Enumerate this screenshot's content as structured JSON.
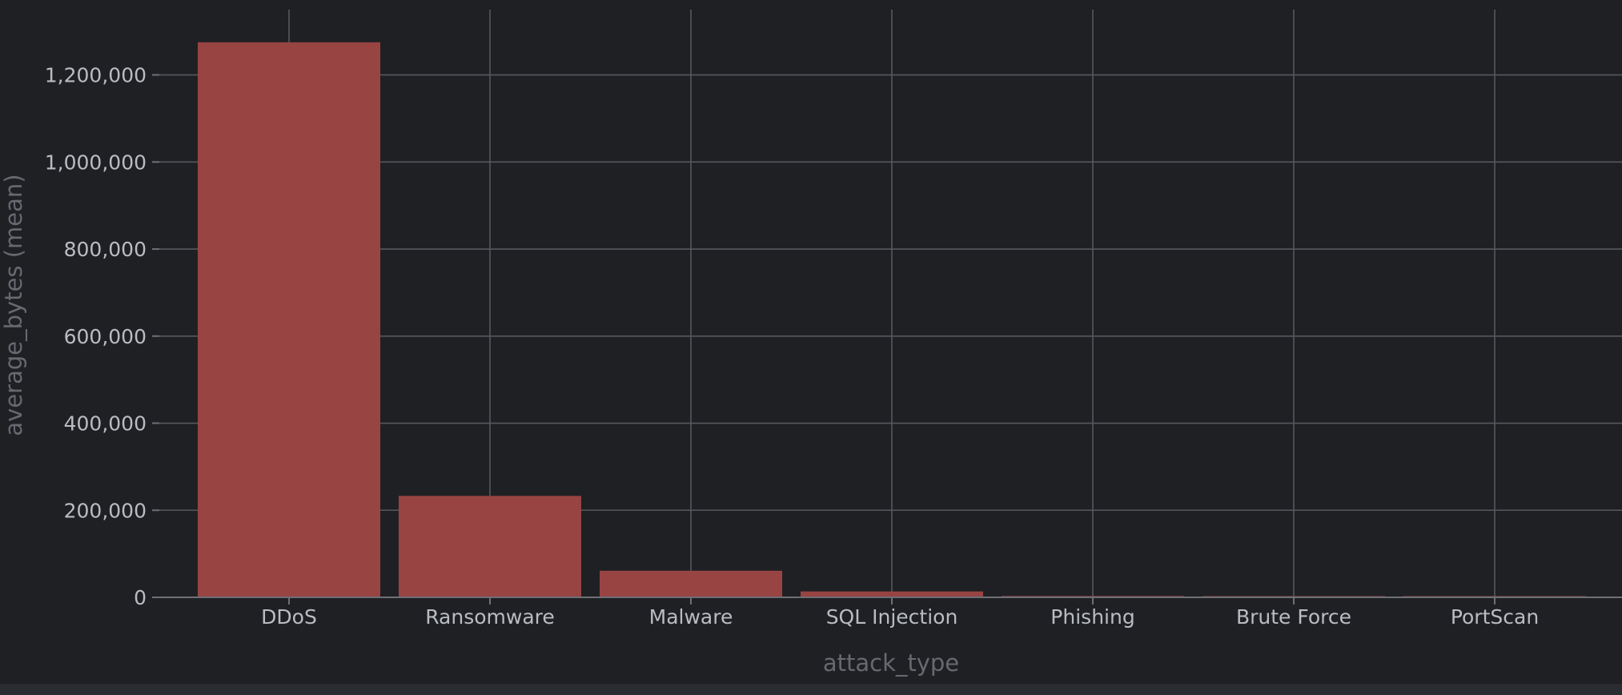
{
  "chart_data": {
    "type": "bar",
    "categories": [
      "DDoS",
      "Ransomware",
      "Malware",
      "SQL Injection",
      "Phishing",
      "Brute Force",
      "PortScan"
    ],
    "series": [
      {
        "name": "average_bytes (mean)",
        "values": [
          1275000,
          233000,
          61000,
          13500,
          3000,
          2500,
          2000
        ]
      }
    ],
    "xlabel": "attack_type",
    "ylabel": "average_bytes (mean)",
    "ylim": [
      0,
      1350000
    ],
    "yticks": [
      0,
      200000,
      400000,
      600000,
      800000,
      1000000,
      1200000
    ],
    "ytick_labels": [
      "0",
      "200,000",
      "400,000",
      "600,000",
      "800,000",
      "1,000,000",
      "1,200,000"
    ],
    "grid": true,
    "colors": {
      "background": "#1f2024",
      "bar": "#984443",
      "grid": "#55585d",
      "tick_text": "#b9bcc2",
      "axis_title": "#66696f"
    }
  }
}
